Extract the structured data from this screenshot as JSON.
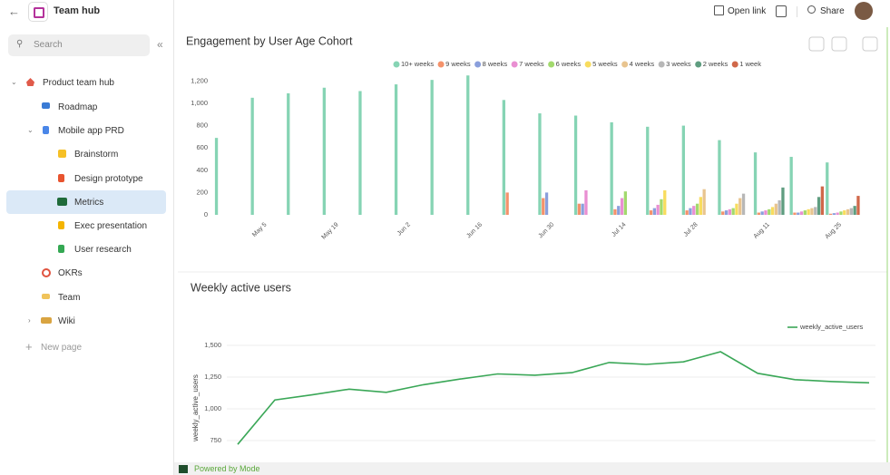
{
  "header": {
    "title": "Team hub",
    "search": "Search"
  },
  "nav": {
    "items": [
      "Product team hub",
      "Roadmap",
      "Mobile app PRD",
      "Brainstorm",
      "Design prototype",
      "Metrics",
      "Exec presentation",
      "User research",
      "OKRs",
      "Team",
      "Wiki"
    ],
    "new_page": "New page"
  },
  "toolbar": {
    "open_link": "Open link",
    "share": "Share"
  },
  "footer": "Powered by Mode",
  "chart_data": [
    {
      "type": "bar",
      "title": "Engagement by User Age Cohort",
      "categories": [
        null,
        "May 5",
        null,
        "May 19",
        null,
        "Jun 2",
        null,
        "Jun 16",
        null,
        "Jun 30",
        null,
        "Jul 14",
        null,
        "Jul 28",
        null,
        "Aug 11",
        null,
        "Aug 25"
      ],
      "series": [
        {
          "name": "10+ weeks",
          "color": "#86d4b4",
          "values": [
            690,
            1050,
            1090,
            1140,
            1110,
            1170,
            1210,
            1250,
            1030,
            910,
            890,
            830,
            790,
            800,
            670,
            560,
            520,
            470
          ]
        },
        {
          "name": "9 weeks",
          "color": "#f4926b",
          "values": [
            null,
            null,
            null,
            null,
            null,
            null,
            null,
            null,
            200,
            150,
            100,
            50,
            40,
            40,
            30,
            20,
            20,
            10
          ]
        },
        {
          "name": "8 weeks",
          "color": "#8a9fdc",
          "values": [
            null,
            null,
            null,
            null,
            null,
            null,
            null,
            null,
            null,
            200,
            100,
            80,
            60,
            60,
            40,
            30,
            20,
            15
          ]
        },
        {
          "name": "7 weeks",
          "color": "#e98fd2",
          "values": [
            null,
            null,
            null,
            null,
            null,
            null,
            null,
            null,
            null,
            null,
            220,
            150,
            90,
            80,
            50,
            40,
            30,
            20
          ]
        },
        {
          "name": "6 weeks",
          "color": "#a2d96d",
          "values": [
            null,
            null,
            null,
            null,
            null,
            null,
            null,
            null,
            null,
            null,
            null,
            210,
            140,
            100,
            60,
            50,
            40,
            30
          ]
        },
        {
          "name": "5 weeks",
          "color": "#f8dc5e",
          "values": [
            null,
            null,
            null,
            null,
            null,
            null,
            null,
            null,
            null,
            null,
            null,
            null,
            220,
            160,
            100,
            70,
            50,
            40
          ]
        },
        {
          "name": "4 weeks",
          "color": "#e8c48f",
          "values": [
            null,
            null,
            null,
            null,
            null,
            null,
            null,
            null,
            null,
            null,
            null,
            null,
            null,
            230,
            150,
            100,
            60,
            50
          ]
        },
        {
          "name": "3 weeks",
          "color": "#b7b7b7",
          "values": [
            null,
            null,
            null,
            null,
            null,
            null,
            null,
            null,
            null,
            null,
            null,
            null,
            null,
            null,
            190,
            130,
            70,
            60
          ]
        },
        {
          "name": "2 weeks",
          "color": "#5f9d80",
          "values": [
            null,
            null,
            null,
            null,
            null,
            null,
            null,
            null,
            null,
            null,
            null,
            null,
            null,
            null,
            null,
            245,
            160,
            80
          ]
        },
        {
          "name": "1 week",
          "color": "#d0684a",
          "values": [
            null,
            null,
            null,
            null,
            null,
            null,
            null,
            null,
            null,
            null,
            null,
            null,
            null,
            null,
            null,
            null,
            255,
            170
          ]
        }
      ],
      "ylim": [
        0,
        1260
      ],
      "yticks": [
        0,
        200,
        400,
        600,
        800,
        {
          "value": 1000,
          "label": "1,000"
        },
        {
          "value": 1200,
          "label": "1,200"
        }
      ],
      "grid": false,
      "legend": "top-right"
    },
    {
      "type": "line",
      "title": "Weekly active users",
      "y_label": "weekly_active_users",
      "series": [
        {
          "name": "weekly_active_users",
          "color": "#3aa757",
          "values": [
            720,
            1070,
            1110,
            1155,
            1130,
            1190,
            1235,
            1275,
            1265,
            1285,
            1365,
            1350,
            1370,
            1450,
            1280,
            1230,
            1215,
            1205
          ]
        }
      ],
      "ylim": [
        650,
        1550
      ],
      "yticks": [
        750,
        {
          "value": 1000,
          "label": "1,000"
        },
        {
          "value": 1250,
          "label": "1,250"
        },
        {
          "value": 1500,
          "label": "1,500"
        }
      ],
      "grid": true,
      "legend": "top-right"
    }
  ]
}
